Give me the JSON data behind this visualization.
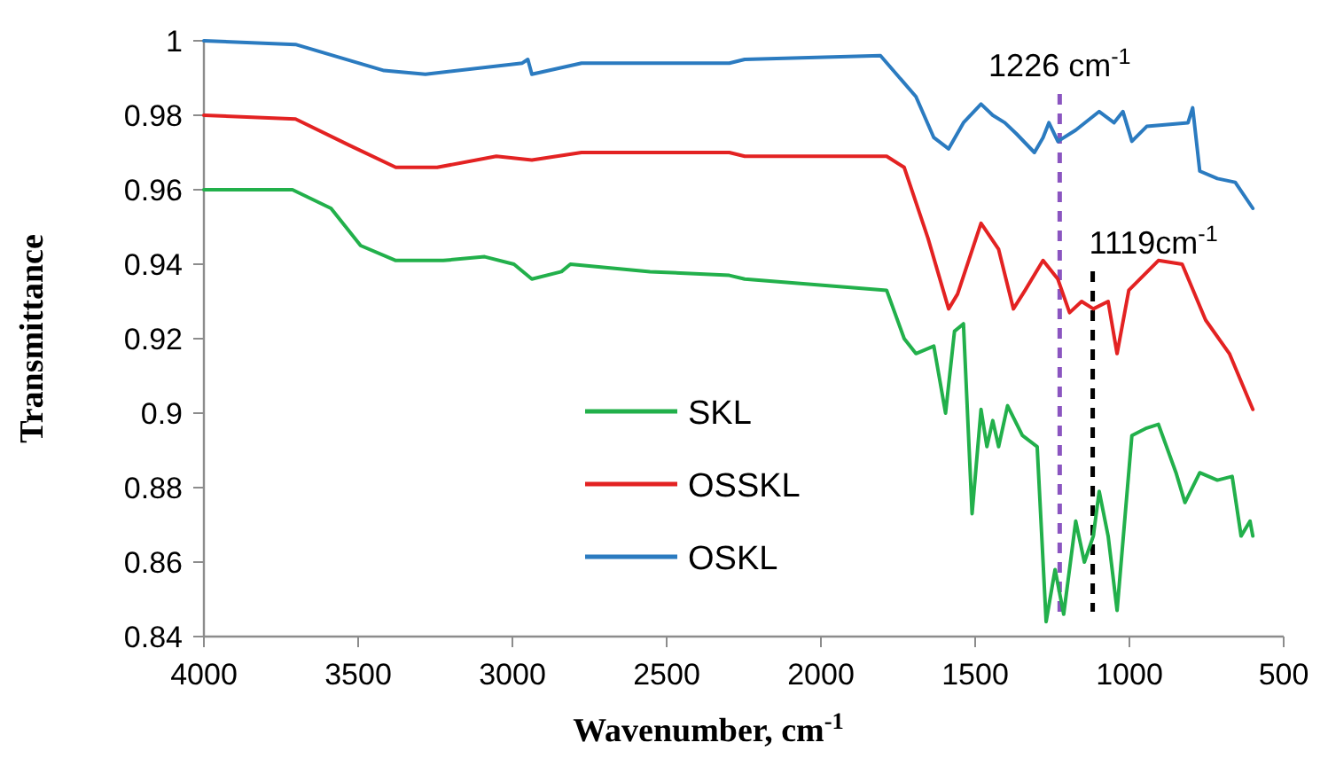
{
  "chart_data": {
    "type": "line",
    "xlabel": "Wavenumber, cm$^{-1}$",
    "ylabel": "Transmittance",
    "xlim": [
      4000,
      500
    ],
    "xticks": [
      4000,
      3500,
      3000,
      2500,
      2000,
      1500,
      1000,
      500
    ],
    "ylim": [
      0.84,
      1
    ],
    "yticks": [
      0.84,
      0.86,
      0.88,
      0.9,
      0.92,
      0.94,
      0.96,
      0.98,
      1
    ],
    "grid": false,
    "legend": "bottom",
    "marker": "none",
    "line_style": "solid",
    "series": [
      {
        "name": "SKL",
        "color": "#22b04b",
        "x": [
          4000,
          3856,
          3713,
          3588,
          3492,
          3378,
          3224,
          3090,
          2995,
          2937,
          2841,
          2812,
          2554,
          2297,
          2247,
          1787,
          1730,
          1692,
          1634,
          1596,
          1567,
          1538,
          1510,
          1481,
          1462,
          1443,
          1424,
          1395,
          1347,
          1299,
          1270,
          1241,
          1213,
          1174,
          1146,
          1117,
          1098,
          1069,
          1040,
          992,
          944,
          906,
          849,
          820,
          772,
          715,
          667,
          638,
          609,
          600
        ],
        "values": [
          0.96,
          0.96,
          0.96,
          0.955,
          0.945,
          0.941,
          0.941,
          0.942,
          0.94,
          0.936,
          0.938,
          0.94,
          0.938,
          0.937,
          0.936,
          0.933,
          0.92,
          0.916,
          0.918,
          0.9,
          0.922,
          0.924,
          0.873,
          0.901,
          0.891,
          0.898,
          0.891,
          0.902,
          0.894,
          0.891,
          0.844,
          0.858,
          0.846,
          0.871,
          0.86,
          0.867,
          0.879,
          0.867,
          0.847,
          0.894,
          0.896,
          0.897,
          0.884,
          0.876,
          0.884,
          0.882,
          0.883,
          0.867,
          0.871,
          0.867
        ]
      },
      {
        "name": "OSSKL",
        "color": "#e32222",
        "x": [
          4000,
          3703,
          3530,
          3378,
          3244,
          3052,
          2937,
          2776,
          2297,
          2247,
          1787,
          1730,
          1653,
          1586,
          1557,
          1481,
          1424,
          1376,
          1338,
          1280,
          1232,
          1194,
          1155,
          1117,
          1069,
          1040,
          1002,
          906,
          829,
          753,
          676,
          600
        ],
        "values": [
          0.98,
          0.979,
          0.972,
          0.966,
          0.966,
          0.969,
          0.968,
          0.97,
          0.97,
          0.969,
          0.969,
          0.966,
          0.947,
          0.928,
          0.932,
          0.951,
          0.944,
          0.928,
          0.933,
          0.941,
          0.936,
          0.927,
          0.93,
          0.928,
          0.93,
          0.916,
          0.933,
          0.941,
          0.94,
          0.925,
          0.916,
          0.901
        ]
      },
      {
        "name": "OSKL",
        "color": "#2b7bc0",
        "x": [
          4000,
          3703,
          3416,
          3282,
          2968,
          2950,
          2937,
          2776,
          2297,
          2247,
          1807,
          1692,
          1634,
          1586,
          1538,
          1481,
          1443,
          1404,
          1366,
          1308,
          1280,
          1261,
          1232,
          1174,
          1098,
          1050,
          1021,
          992,
          944,
          810,
          795,
          772,
          715,
          657,
          600
        ],
        "values": [
          1.0,
          0.999,
          0.992,
          0.991,
          0.994,
          0.995,
          0.991,
          0.994,
          0.994,
          0.995,
          0.996,
          0.985,
          0.974,
          0.971,
          0.978,
          0.983,
          0.98,
          0.978,
          0.975,
          0.97,
          0.974,
          0.978,
          0.973,
          0.976,
          0.981,
          0.978,
          0.981,
          0.973,
          0.977,
          0.978,
          0.982,
          0.965,
          0.963,
          0.962,
          0.955
        ]
      }
    ],
    "ref_lines": [
      {
        "axis": "x",
        "value": 1226,
        "label": "1226 cm$^{-1}$",
        "color": "#8a55c0",
        "line_style": "dashed"
      },
      {
        "axis": "x",
        "value": 1119,
        "label": "1119cm$^{-1}$",
        "color": "#000000",
        "line_style": "dashed"
      }
    ]
  }
}
